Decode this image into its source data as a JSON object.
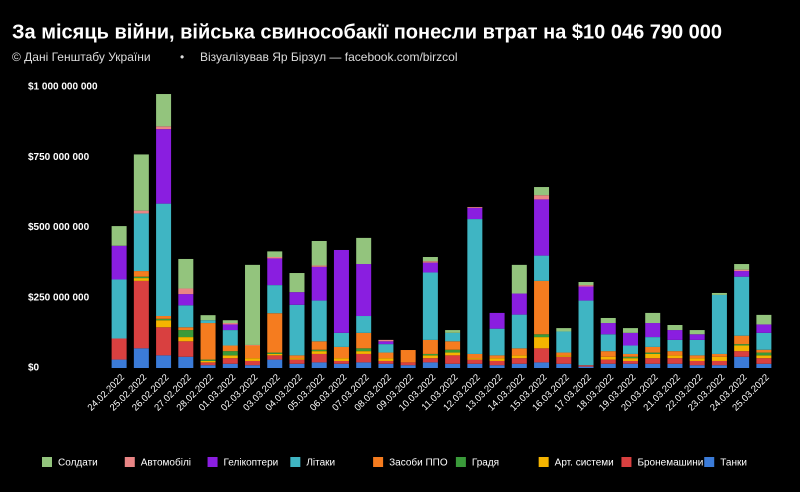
{
  "chart_data": {
    "type": "stacked_bar",
    "title": "За місяць війни, війська свинособакії понесли втрат на $10 046 790 000",
    "source": "© Дані Генштабу України",
    "separator": "•",
    "credit": "Візуалізував Яр Бірзул — facebook.com/birzcol",
    "categories": [
      "24.02.2022",
      "25.02.2022",
      "26.02.2022",
      "27.02.2022",
      "28.02.2022",
      "01.03.2022",
      "02.03.2022",
      "03.03.2022",
      "04.03.2022",
      "05.03.2022",
      "06.03.2022",
      "07.03.2022",
      "08.03.2022",
      "09.03.2022",
      "10.03.2022",
      "11.03.2022",
      "12.03.2022",
      "13.03.2022",
      "14.03.2022",
      "15.03.2022",
      "16.03.2022",
      "17.03.2022",
      "18.03.2022",
      "19.03.2022",
      "20.03.2022",
      "21.03.2022",
      "22.03.2022",
      "23.03.2022",
      "24.03.2022",
      "25.03.2022"
    ],
    "series": [
      {
        "name": "Солдати",
        "color": "#93c47d",
        "values": [
          70000000.0,
          200000000.0,
          115000000.0,
          105000000.0,
          18000000.0,
          10000000.0,
          285000000.0,
          20000000.0,
          68000000.0,
          87000000.0,
          0,
          93000000.0,
          0,
          0,
          15000000.0,
          10000000.0,
          0,
          0,
          102000000.0,
          29000000.0,
          12000000.0,
          11000000.0,
          18000000.0,
          17000000.0,
          36000000.0,
          18000000.0,
          15000000.0,
          7000000.0,
          20000000.0,
          34000000.0
        ]
      },
      {
        "name": "Автомобілі",
        "color": "#e98585",
        "values": [
          0,
          10000000.0,
          10000000.0,
          20000000.0,
          0,
          5000000.0,
          2000000.0,
          5000000.0,
          0,
          5000000.0,
          0,
          0,
          5000000.0,
          0,
          5000000.0,
          0,
          3000000.0,
          0,
          0,
          15000000.0,
          0,
          5000000.0,
          0,
          0,
          0,
          0,
          0,
          0,
          5000000.0,
          0
        ]
      },
      {
        "name": "Гелікоптери",
        "color": "#8a1ee0",
        "values": [
          120000000.0,
          0,
          265000000.0,
          40000000.0,
          0,
          20000000.0,
          0,
          95000000.0,
          45000000.0,
          120000000.0,
          295000000.0,
          185000000.0,
          10000000.0,
          0,
          35000000.0,
          0,
          40000000.0,
          56000000.0,
          75000000.0,
          200000000.0,
          0,
          50000000.0,
          40000000.0,
          45000000.0,
          50000000.0,
          35000000.0,
          20000000.0,
          0,
          20000000.0,
          30000000.0
        ]
      },
      {
        "name": "Літаки",
        "color": "#3fb5c3",
        "values": [
          210000000.0,
          205000000.0,
          400000000.0,
          78000000.0,
          10000000.0,
          55000000.0,
          0,
          100000000.0,
          180000000.0,
          145000000.0,
          50000000.0,
          60000000.0,
          30000000.0,
          0,
          240000000.0,
          30000000.0,
          480000000.0,
          95000000.0,
          120000000.0,
          90000000.0,
          75000000.0,
          230000000.0,
          60000000.0,
          30000000.0,
          35000000.0,
          40000000.0,
          55000000.0,
          210000000.0,
          210000000.0,
          60000000.0
        ]
      },
      {
        "name": "Засоби ППО",
        "color": "#f57c1f",
        "values": [
          0,
          20000000.0,
          10000000.0,
          10000000.0,
          130000000.0,
          20000000.0,
          45000000.0,
          140000000.0,
          10000000.0,
          30000000.0,
          40000000.0,
          55000000.0,
          20000000.0,
          44000000.0,
          50000000.0,
          30000000.0,
          15000000.0,
          10000000.0,
          25000000.0,
          190000000.0,
          10000000.0,
          0,
          20000000.0,
          10000000.0,
          20000000.0,
          15000000.0,
          10000000.0,
          10000000.0,
          30000000.0,
          10000000.0
        ]
      },
      {
        "name": "Градя",
        "color": "#3a9a3a",
        "values": [
          0,
          5000000.0,
          5000000.0,
          25000000.0,
          5000000.0,
          15000000.0,
          0,
          5000000.0,
          0,
          5000000.0,
          0,
          10000000.0,
          0,
          0,
          5000000.0,
          10000000.0,
          0,
          0,
          0,
          10000000.0,
          0,
          0,
          0,
          5000000.0,
          5000000.0,
          0,
          0,
          0,
          5000000.0,
          10000000.0
        ]
      },
      {
        "name": "Арт. системи",
        "color": "#f5b400",
        "values": [
          0,
          10000000.0,
          25000000.0,
          15000000.0,
          5000000.0,
          10000000.0,
          10000000.0,
          5000000.0,
          5000000.0,
          10000000.0,
          10000000.0,
          10000000.0,
          10000000.0,
          0,
          10000000.0,
          10000000.0,
          5000000.0,
          10000000.0,
          10000000.0,
          40000000.0,
          5000000.0,
          0,
          10000000.0,
          10000000.0,
          15000000.0,
          10000000.0,
          10000000.0,
          15000000.0,
          20000000.0,
          10000000.0
        ]
      },
      {
        "name": "Бронемашини",
        "color": "#d94040",
        "values": [
          75000000.0,
          240000000.0,
          100000000.0,
          55000000.0,
          10000000.0,
          20000000.0,
          15000000.0,
          15000000.0,
          15000000.0,
          30000000.0,
          10000000.0,
          30000000.0,
          10000000.0,
          10000000.0,
          15000000.0,
          30000000.0,
          15000000.0,
          15000000.0,
          20000000.0,
          50000000.0,
          25000000.0,
          5000000.0,
          15000000.0,
          10000000.0,
          20000000.0,
          20000000.0,
          15000000.0,
          15000000.0,
          20000000.0,
          20000000.0
        ]
      },
      {
        "name": "Танки",
        "color": "#3b7bd8",
        "values": [
          30000000.0,
          70000000.0,
          45000000.0,
          40000000.0,
          10000000.0,
          15000000.0,
          10000000.0,
          30000000.0,
          15000000.0,
          20000000.0,
          15000000.0,
          20000000.0,
          15000000.0,
          10000000.0,
          20000000.0,
          15000000.0,
          15000000.0,
          10000000.0,
          15000000.0,
          20000000.0,
          15000000.0,
          5000000.0,
          15000000.0,
          15000000.0,
          15000000.0,
          15000000.0,
          10000000.0,
          10000000.0,
          40000000.0,
          15000000.0
        ]
      }
    ],
    "ylim": [
      0,
      1000000000
    ],
    "yticks": [
      {
        "value": 0,
        "label": "$0"
      },
      {
        "value": 250000000,
        "label": "$250 000 000"
      },
      {
        "value": 500000000,
        "label": "$500 000 000"
      },
      {
        "value": 750000000,
        "label": "$750 000 000"
      },
      {
        "value": 1000000000,
        "label": "$1 000 000 000"
      }
    ],
    "grid": false,
    "legend": "bottom"
  }
}
